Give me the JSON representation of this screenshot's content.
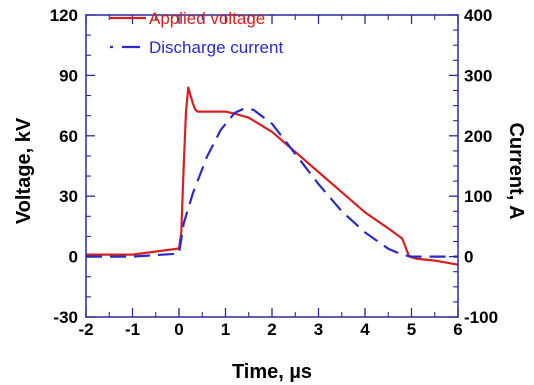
{
  "chart_data": {
    "type": "line",
    "title": "",
    "xlabel": "Time, µs",
    "ylabel": "Voltage, kV",
    "y2label": "Current, A",
    "xlim": [
      -2,
      6
    ],
    "ylim": [
      -30,
      120
    ],
    "y2lim": [
      -100,
      400
    ],
    "xticks": [
      "-2",
      "-1",
      "0",
      "1",
      "2",
      "3",
      "4",
      "5",
      "6"
    ],
    "yticks": [
      "-30",
      "0",
      "30",
      "60",
      "90",
      "120"
    ],
    "y2ticks": [
      "-100",
      "0",
      "100",
      "200",
      "300",
      "400"
    ],
    "legend_position": "top-left",
    "grid": false,
    "series": [
      {
        "name": "Applied voltage",
        "axis": "left",
        "color": "#d42020",
        "style": "solid",
        "x": [
          -2,
          -1,
          0,
          0.05,
          0.1,
          0.15,
          0.2,
          0.25,
          0.3,
          0.35,
          0.4,
          0.5,
          0.6,
          0.8,
          1.0,
          1.2,
          1.5,
          2.0,
          2.5,
          3.0,
          3.5,
          4.0,
          4.5,
          4.8,
          4.95,
          5.1,
          5.5,
          6.0
        ],
        "y": [
          1,
          1,
          4,
          12,
          45,
          72,
          84,
          80,
          76,
          73,
          72,
          72,
          72,
          72,
          72,
          71,
          69,
          62,
          52,
          42,
          32,
          22,
          14,
          9,
          0,
          -1,
          -2,
          -4
        ]
      },
      {
        "name": "Discharge current",
        "axis": "right",
        "color": "#2a2acc",
        "style": "dashed",
        "x": [
          -2,
          -1,
          0,
          0.1,
          0.3,
          0.6,
          0.9,
          1.2,
          1.4,
          1.6,
          2.0,
          2.5,
          3.0,
          3.5,
          4.0,
          4.5,
          4.8,
          5.0,
          5.3,
          6.0
        ],
        "y": [
          0,
          0,
          5,
          55,
          105,
          165,
          210,
          238,
          245,
          243,
          220,
          170,
          120,
          75,
          40,
          13,
          3,
          0,
          0,
          0
        ]
      }
    ]
  }
}
